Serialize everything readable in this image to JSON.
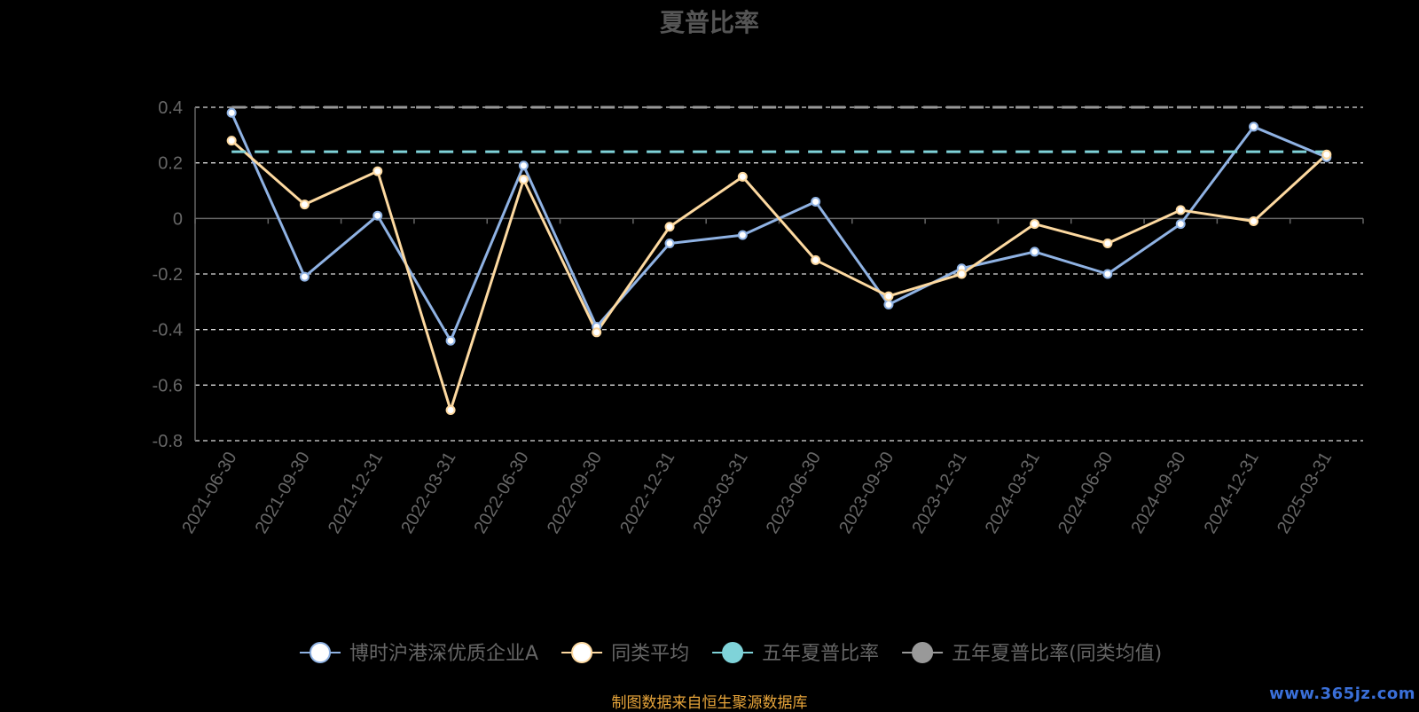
{
  "chart_data": {
    "type": "line",
    "title": "夏普比率",
    "categories": [
      "2021-06-30",
      "2021-09-30",
      "2021-12-31",
      "2022-03-31",
      "2022-06-30",
      "2022-09-30",
      "2022-12-31",
      "2023-03-31",
      "2023-06-30",
      "2023-09-30",
      "2023-12-31",
      "2024-03-31",
      "2024-06-30",
      "2024-09-30",
      "2024-12-31",
      "2025-03-31"
    ],
    "ylim": [
      -0.8,
      0.4
    ],
    "yticks": [
      0.4,
      0.2,
      0,
      -0.2,
      -0.4,
      -0.6,
      -0.8
    ],
    "ytick_labels": [
      "0.4",
      "0.2",
      "0",
      "-0.2",
      "-0.4",
      "-0.6",
      "-0.8"
    ],
    "grid": "horizontal-dashed",
    "legend_position": "bottom",
    "series": [
      {
        "name": "博时沪港深优质企业A",
        "color": "#8fb2e3",
        "marker": "circle",
        "values": [
          0.38,
          -0.21,
          0.01,
          -0.44,
          0.19,
          -0.39,
          -0.09,
          -0.06,
          0.06,
          -0.31,
          -0.18,
          -0.12,
          -0.2,
          -0.02,
          0.33,
          0.22
        ]
      },
      {
        "name": "同类平均",
        "color": "#fdd9a0",
        "marker": "circle",
        "values": [
          0.28,
          0.05,
          0.17,
          -0.69,
          0.14,
          -0.41,
          -0.03,
          0.15,
          -0.15,
          -0.28,
          -0.2,
          -0.02,
          -0.09,
          0.03,
          -0.01,
          0.23
        ]
      },
      {
        "name": "五年夏普比率",
        "color": "#7fd3d9",
        "marker": "circle",
        "style": "dashed",
        "constant": 0.24
      },
      {
        "name": "五年夏普比率(同类均值)",
        "color": "#999999",
        "marker": "circle",
        "style": "dashed",
        "constant": 0.4
      }
    ]
  },
  "source_note": "制图数据来自恒生聚源数据库",
  "watermark": "www.365jz.com"
}
